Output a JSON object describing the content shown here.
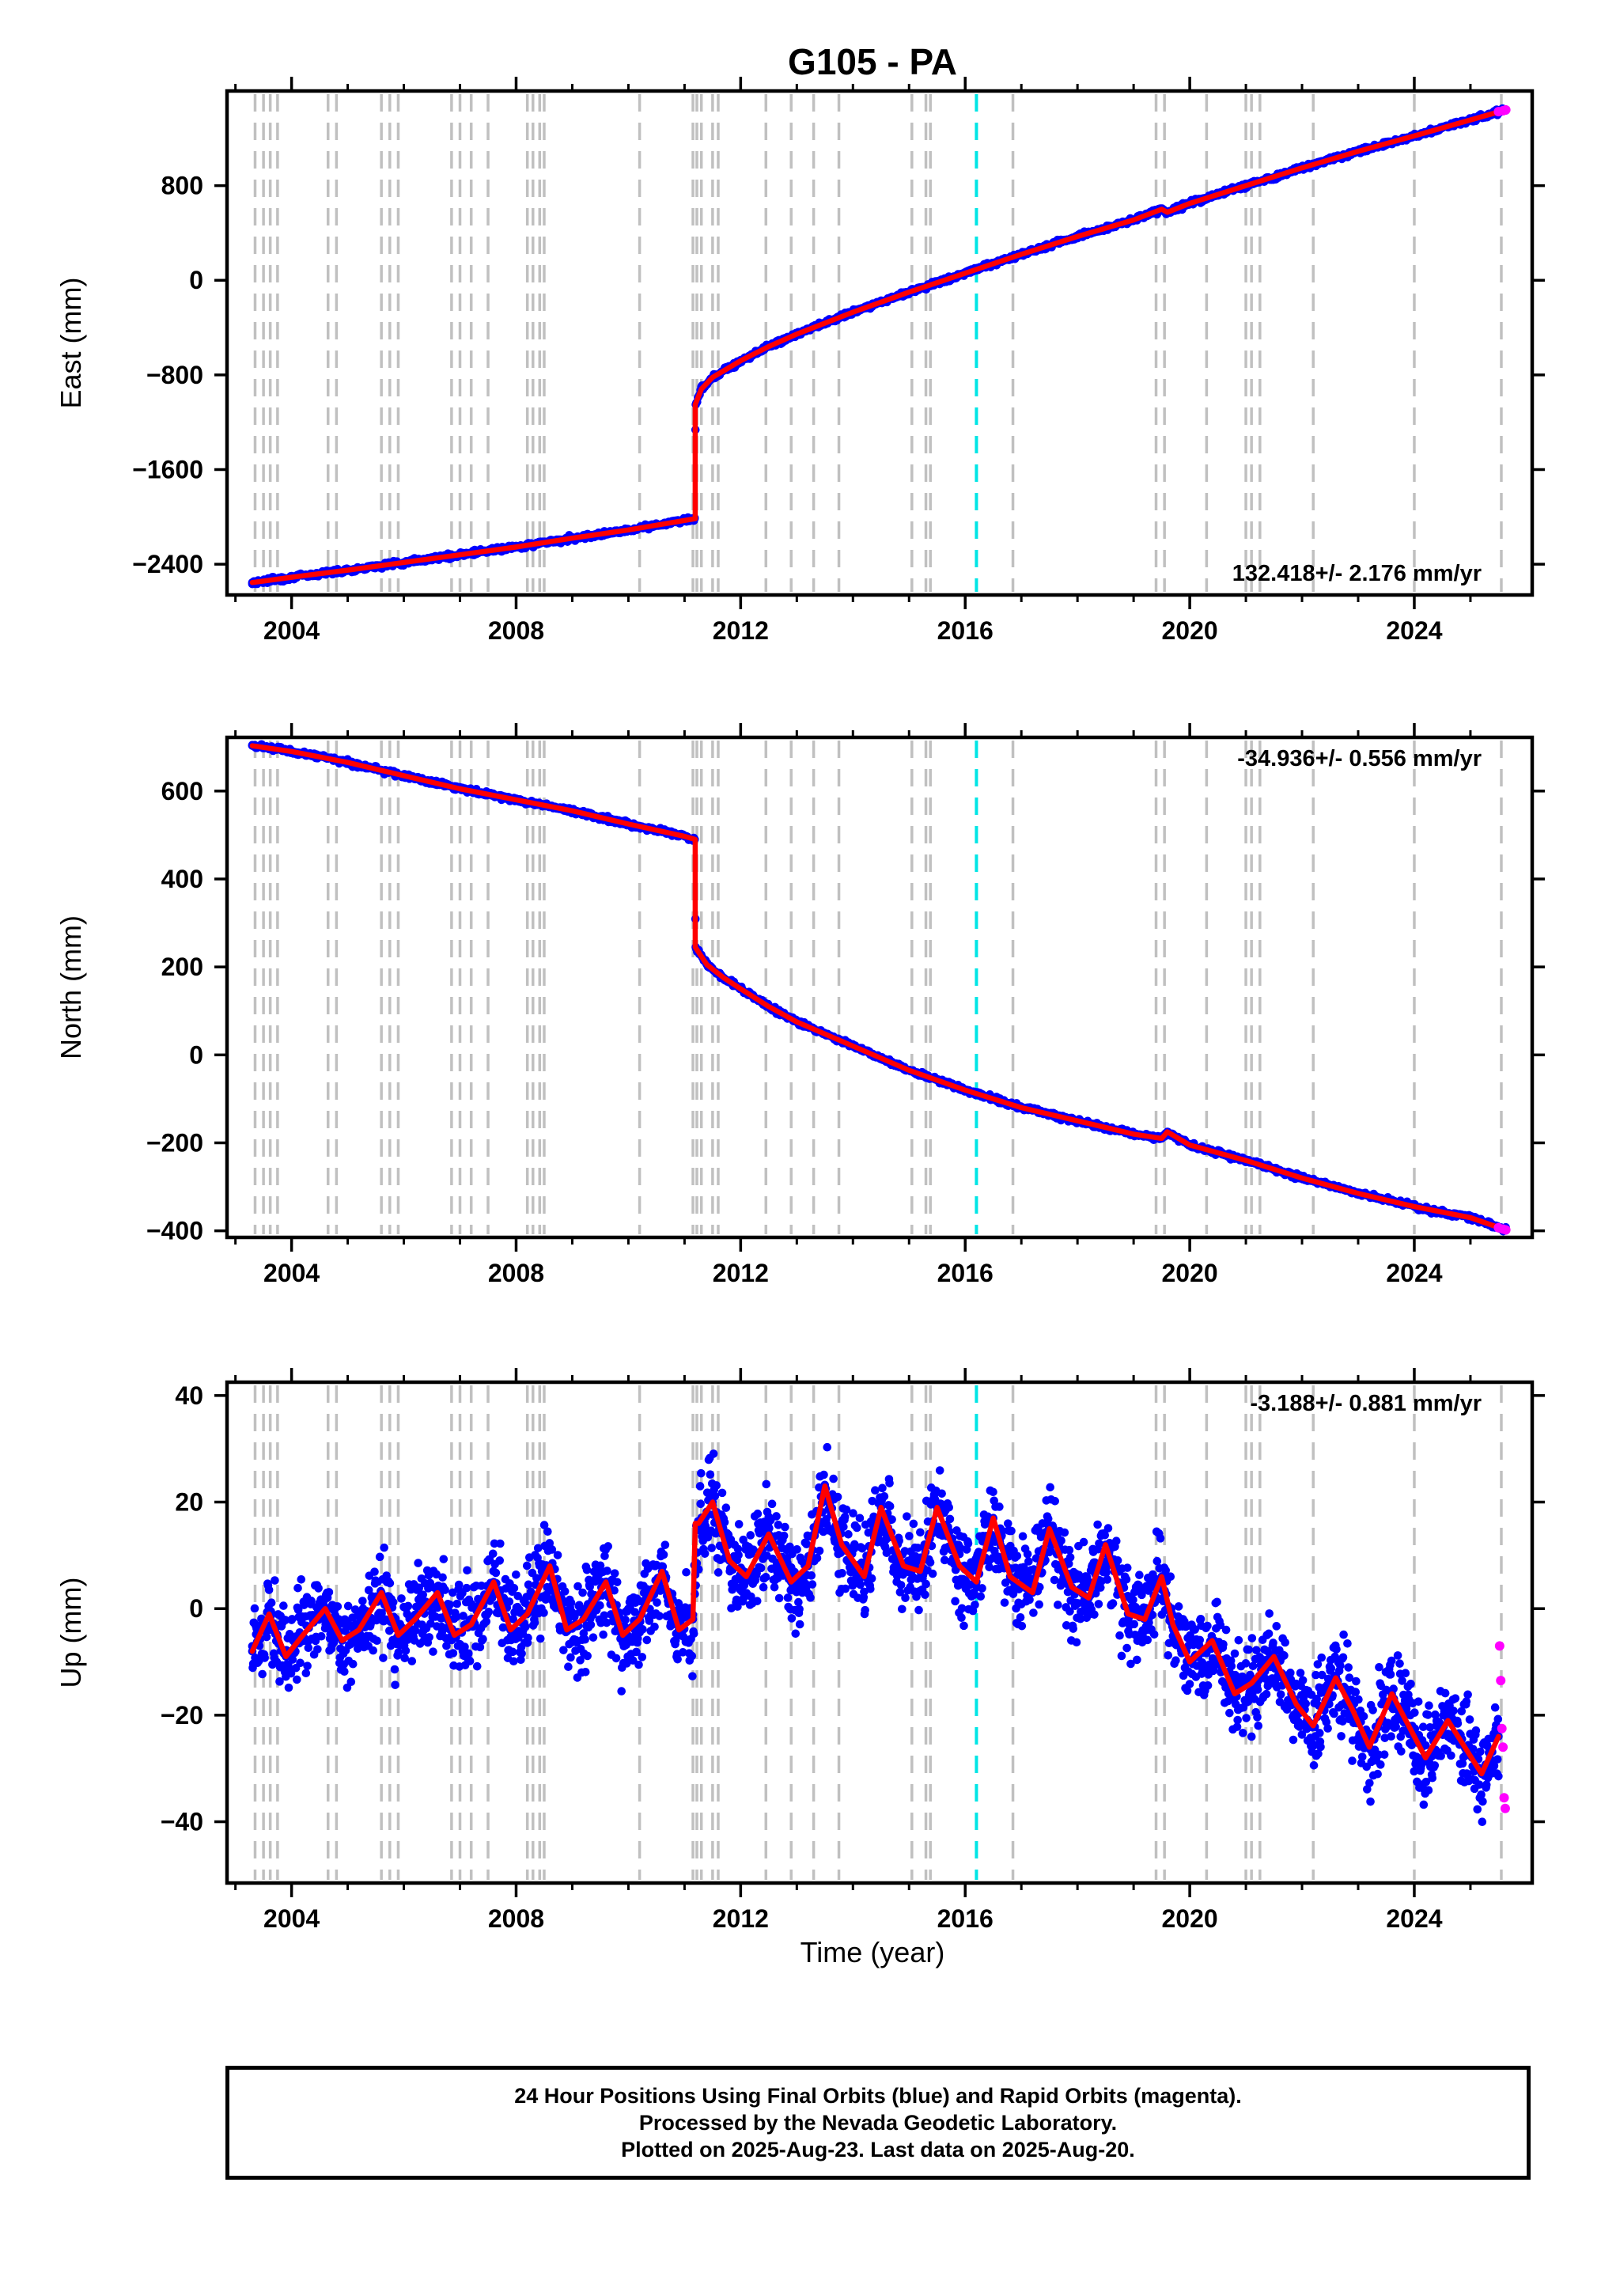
{
  "figure": {
    "title": "G105 - PA",
    "x_axis_label": "Time (year)",
    "footer": {
      "line1": "24 Hour Positions Using Final Orbits (blue) and Rapid Orbits (magenta).",
      "line2": "Processed by the Nevada Geodetic Laboratory.",
      "line3": "Plotted on 2025-Aug-23. Last data on 2025-Aug-20."
    }
  },
  "colors": {
    "final_orbits": "#0000ff",
    "rapid_orbits": "#ff00ff",
    "model_fit": "#ff0000",
    "event_lines": "#c0c0c0",
    "highlight_line": "#00e5e5",
    "axes": "#000000"
  },
  "chart_data": [
    {
      "type": "scatter",
      "panel": "east",
      "ylabel": "East (mm)",
      "rate_text": "132.418+/- 2.176 mm/yr",
      "rate_position": "bottom-right",
      "xlim": [
        2002.85,
        2026.1
      ],
      "ylim": [
        -2660,
        1600
      ],
      "x_ticks": [
        2004,
        2008,
        2012,
        2016,
        2020,
        2024
      ],
      "y_ticks": [
        -2400,
        -1600,
        -800,
        0,
        800
      ],
      "y_tick_labels": [
        "−2400",
        "−1600",
        "−800",
        "0",
        "800"
      ],
      "grid": false,
      "series": [
        {
          "name": "Final Orbits",
          "color": "blue",
          "x": [
            2003.3,
            2004.0,
            2005.0,
            2006.0,
            2007.0,
            2008.0,
            2009.0,
            2010.0,
            2011.0,
            2011.18,
            2011.2,
            2011.3,
            2011.5,
            2012.0,
            2012.5,
            2013.0,
            2014.0,
            2015.0,
            2016.0,
            2017.0,
            2018.0,
            2019.0,
            2019.5,
            2019.6,
            2020.0,
            2021.0,
            2022.0,
            2023.0,
            2024.0,
            2025.0,
            2025.63
          ],
          "y": [
            -2555,
            -2510,
            -2450,
            -2385,
            -2320,
            -2255,
            -2180,
            -2110,
            -2030,
            -2015,
            -1050,
            -920,
            -820,
            -680,
            -560,
            -455,
            -270,
            -100,
            60,
            220,
            370,
            510,
            600,
            575,
            650,
            800,
            950,
            1090,
            1220,
            1355,
            1440
          ]
        },
        {
          "name": "Rapid Orbits",
          "color": "magenta",
          "x": [
            2025.5,
            2025.58,
            2025.63
          ],
          "y": [
            1425,
            1433,
            1440
          ]
        },
        {
          "name": "Model",
          "color": "red",
          "x": [
            2003.3,
            2004.0,
            2005.0,
            2006.0,
            2007.0,
            2008.0,
            2009.0,
            2010.0,
            2011.0,
            2011.19,
            2011.19,
            2011.3,
            2011.5,
            2012.0,
            2012.5,
            2013.0,
            2014.0,
            2015.0,
            2016.0,
            2017.0,
            2018.0,
            2019.0,
            2019.5,
            2019.6,
            2020.0,
            2021.0,
            2022.0,
            2023.0,
            2024.0,
            2025.0,
            2025.63
          ],
          "y": [
            -2555,
            -2510,
            -2450,
            -2385,
            -2320,
            -2255,
            -2180,
            -2110,
            -2030,
            -2015,
            -1050,
            -920,
            -820,
            -680,
            -560,
            -455,
            -270,
            -100,
            60,
            220,
            370,
            510,
            600,
            575,
            650,
            800,
            950,
            1090,
            1220,
            1355,
            1440
          ]
        }
      ]
    },
    {
      "type": "scatter",
      "panel": "north",
      "ylabel": "North (mm)",
      "rate_text": "-34.936+/- 0.556 mm/yr",
      "rate_position": "top-right",
      "xlim": [
        2002.85,
        2026.1
      ],
      "ylim": [
        -415,
        722
      ],
      "x_ticks": [
        2004,
        2008,
        2012,
        2016,
        2020,
        2024
      ],
      "y_ticks": [
        -400,
        -200,
        0,
        200,
        400,
        600
      ],
      "y_tick_labels": [
        "−400",
        "−200",
        "0",
        "200",
        "400",
        "600"
      ],
      "grid": false,
      "series": [
        {
          "name": "Final Orbits",
          "color": "blue",
          "x": [
            2003.3,
            2004.0,
            2005.0,
            2006.0,
            2007.0,
            2008.0,
            2009.0,
            2010.0,
            2011.0,
            2011.18,
            2011.2,
            2011.4,
            2011.7,
            2012.0,
            2012.5,
            2013.0,
            2014.0,
            2015.0,
            2016.0,
            2017.0,
            2018.0,
            2019.0,
            2019.5,
            2019.6,
            2020.0,
            2021.0,
            2022.0,
            2023.0,
            2024.0,
            2025.0,
            2025.63
          ],
          "y": [
            703,
            690,
            665,
            635,
            605,
            580,
            555,
            525,
            497,
            490,
            245,
            205,
            175,
            150,
            110,
            75,
            20,
            -35,
            -80,
            -120,
            -150,
            -180,
            -190,
            -175,
            -205,
            -240,
            -280,
            -315,
            -345,
            -370,
            -398
          ]
        },
        {
          "name": "Rapid Orbits",
          "color": "magenta",
          "x": [
            2025.5,
            2025.58,
            2025.63
          ],
          "y": [
            -393,
            -396,
            -398
          ]
        },
        {
          "name": "Model",
          "color": "red",
          "x": [
            2003.3,
            2004.0,
            2005.0,
            2006.0,
            2007.0,
            2008.0,
            2009.0,
            2010.0,
            2011.0,
            2011.19,
            2011.19,
            2011.4,
            2011.7,
            2012.0,
            2012.5,
            2013.0,
            2014.0,
            2015.0,
            2016.0,
            2017.0,
            2018.0,
            2019.0,
            2019.5,
            2019.6,
            2020.0,
            2021.0,
            2022.0,
            2023.0,
            2024.0,
            2025.0,
            2025.63
          ],
          "y": [
            703,
            690,
            665,
            635,
            605,
            580,
            555,
            525,
            497,
            490,
            245,
            205,
            175,
            150,
            110,
            75,
            20,
            -35,
            -80,
            -120,
            -150,
            -180,
            -190,
            -175,
            -205,
            -240,
            -280,
            -315,
            -345,
            -370,
            -398
          ]
        }
      ]
    },
    {
      "type": "scatter",
      "panel": "up",
      "ylabel": "Up (mm)",
      "rate_text": "-3.188+/- 0.881 mm/yr",
      "rate_position": "top-right",
      "xlim": [
        2002.85,
        2026.1
      ],
      "ylim": [
        -51.5,
        42.5
      ],
      "x_ticks": [
        2004,
        2008,
        2012,
        2016,
        2020,
        2024
      ],
      "y_ticks": [
        -40,
        -20,
        0,
        20,
        40
      ],
      "y_tick_labels": [
        "−40",
        "−20",
        "0",
        "20",
        "40"
      ],
      "grid": false,
      "series": [
        {
          "name": "Final Orbits",
          "color": "blue",
          "x": [
            2003.3,
            2003.6,
            2003.9,
            2004.2,
            2004.6,
            2004.9,
            2005.2,
            2005.6,
            2005.9,
            2006.2,
            2006.6,
            2006.9,
            2007.2,
            2007.6,
            2007.9,
            2008.2,
            2008.6,
            2008.9,
            2009.2,
            2009.6,
            2009.9,
            2010.2,
            2010.6,
            2010.9,
            2011.15,
            2011.25,
            2011.5,
            2011.8,
            2012.1,
            2012.5,
            2012.9,
            2013.2,
            2013.5,
            2013.8,
            2014.2,
            2014.5,
            2014.9,
            2015.2,
            2015.5,
            2015.9,
            2016.2,
            2016.5,
            2016.8,
            2017.2,
            2017.5,
            2017.9,
            2018.2,
            2018.5,
            2018.9,
            2019.2,
            2019.5,
            2019.7,
            2020.0,
            2020.4,
            2020.8,
            2021.1,
            2021.5,
            2021.9,
            2022.2,
            2022.6,
            2022.9,
            2023.2,
            2023.6,
            2023.9,
            2024.2,
            2024.6,
            2024.9,
            2025.2,
            2025.5
          ],
          "y": [
            -8,
            -1,
            -9,
            -5,
            0,
            -6,
            -4,
            3,
            -5,
            -2,
            3,
            -5,
            -3,
            5,
            -4,
            -1,
            8,
            -4,
            -2,
            5,
            -5,
            -2,
            7,
            -4,
            -2,
            16,
            20,
            9,
            6,
            14,
            5,
            8,
            23,
            12,
            6,
            19,
            8,
            7,
            19,
            8,
            5,
            17,
            6,
            3,
            15,
            4,
            2,
            12,
            -1,
            -2,
            6,
            -3,
            -10,
            -6,
            -16,
            -14,
            -9,
            -18,
            -22,
            -13,
            -19,
            -26,
            -16,
            -22,
            -28,
            -21,
            -26,
            -31,
            -24
          ]
        },
        {
          "name": "Rapid Orbits",
          "color": "magenta",
          "x": [
            2025.52,
            2025.54,
            2025.56,
            2025.58,
            2025.6,
            2025.62
          ],
          "y": [
            -7,
            -13.5,
            -22.5,
            -26,
            -35.5,
            -37.5
          ]
        },
        {
          "name": "Model",
          "color": "red",
          "x": [
            2003.3,
            2003.6,
            2003.9,
            2004.2,
            2004.6,
            2004.9,
            2005.2,
            2005.6,
            2005.9,
            2006.2,
            2006.6,
            2006.9,
            2007.2,
            2007.6,
            2007.9,
            2008.2,
            2008.6,
            2008.9,
            2009.2,
            2009.6,
            2009.9,
            2010.2,
            2010.6,
            2010.9,
            2011.15,
            2011.19,
            2011.25,
            2011.5,
            2011.8,
            2012.1,
            2012.5,
            2012.9,
            2013.2,
            2013.5,
            2013.8,
            2014.2,
            2014.5,
            2014.9,
            2015.2,
            2015.5,
            2015.9,
            2016.2,
            2016.5,
            2016.8,
            2017.2,
            2017.5,
            2017.9,
            2018.2,
            2018.5,
            2018.9,
            2019.2,
            2019.5,
            2019.7,
            2020.0,
            2020.4,
            2020.8,
            2021.1,
            2021.5,
            2021.9,
            2022.2,
            2022.6,
            2022.9,
            2023.2,
            2023.6,
            2023.9,
            2024.2,
            2024.6,
            2024.9,
            2025.2,
            2025.5
          ],
          "y": [
            -8,
            -1,
            -9,
            -5,
            0,
            -6,
            -4,
            3,
            -5,
            -2,
            3,
            -5,
            -3,
            5,
            -4,
            -1,
            8,
            -4,
            -2,
            5,
            -5,
            -2,
            7,
            -4,
            -2,
            16,
            16,
            20,
            9,
            6,
            14,
            5,
            8,
            23,
            12,
            6,
            19,
            8,
            7,
            19,
            8,
            5,
            17,
            6,
            3,
            15,
            4,
            2,
            12,
            -1,
            -2,
            6,
            -3,
            -10,
            -6,
            -16,
            -14,
            -9,
            -18,
            -22,
            -13,
            -19,
            -26,
            -16,
            -22,
            -28,
            -21,
            -26,
            -31,
            -24
          ]
        }
      ]
    }
  ],
  "event_lines": {
    "type": "dashed vertical lines",
    "color": "grey",
    "x": [
      2003.35,
      2003.5,
      2003.62,
      2003.75,
      2004.65,
      2004.8,
      2005.6,
      2005.75,
      2005.9,
      2006.85,
      2007.0,
      2007.2,
      2007.5,
      2008.2,
      2008.3,
      2008.42,
      2008.5,
      2010.2,
      2011.15,
      2011.22,
      2011.3,
      2011.5,
      2011.6,
      2012.45,
      2012.9,
      2013.3,
      2013.75,
      2015.05,
      2015.3,
      2015.38,
      2016.85,
      2019.4,
      2019.55,
      2020.3,
      2021.0,
      2021.1,
      2021.25,
      2022.2,
      2024.0,
      2025.55
    ]
  },
  "highlight_line": {
    "type": "dashed vertical line",
    "color": "cyan",
    "x": 2016.2
  }
}
